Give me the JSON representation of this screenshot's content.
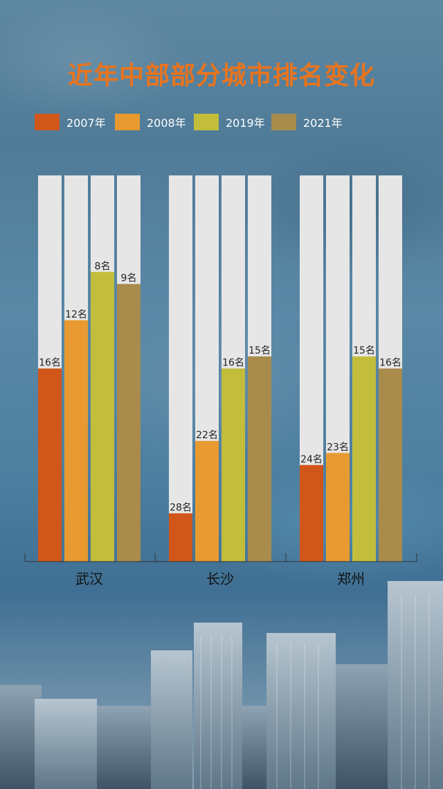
{
  "title": "近年中部部分城市排名变化",
  "colors": {
    "2007年": "#d0561a",
    "2008年": "#e89a30",
    "2019年": "#c3bd3c",
    "2021年": "#a98b4c",
    "track": "#e6e6e6",
    "title": "#e8741e"
  },
  "chart_data": {
    "type": "bar",
    "title": "近年中部部分城市排名变化",
    "categories": [
      "武汉",
      "长沙",
      "郑州"
    ],
    "series": [
      {
        "name": "2007年",
        "values": [
          16,
          28,
          24
        ],
        "labels": [
          "16名",
          "28名",
          "24名"
        ]
      },
      {
        "name": "2008年",
        "values": [
          12,
          22,
          23
        ],
        "labels": [
          "12名",
          "22名",
          "23名"
        ]
      },
      {
        "name": "2019年",
        "values": [
          8,
          16,
          15
        ],
        "labels": [
          "8名",
          "16名",
          "15名"
        ]
      },
      {
        "name": "2021年",
        "values": [
          9,
          15,
          16
        ],
        "labels": [
          "9名",
          "15名",
          "16名"
        ]
      }
    ],
    "scale": "rank (lower is better)",
    "rank_range": [
      0,
      32
    ],
    "legend_position": "top",
    "grid": false
  }
}
